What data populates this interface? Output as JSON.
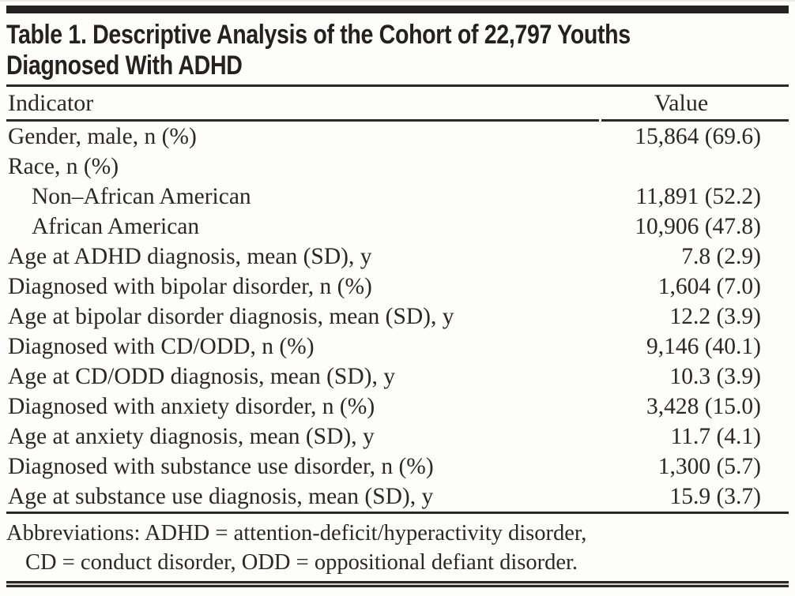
{
  "table": {
    "title_lines": [
      "Table 1. Descriptive Analysis of the Cohort of 22,797 Youths",
      "Diagnosed With ADHD"
    ],
    "columns": {
      "indicator": "Indicator",
      "value": "Value"
    },
    "rows": [
      {
        "label": "Gender, male, n (%)",
        "value": "15,864 (69.6)",
        "indent": false
      },
      {
        "label": "Race, n (%)",
        "value": "",
        "indent": false
      },
      {
        "label": "Non–African American",
        "value": "11,891 (52.2)",
        "indent": true
      },
      {
        "label": "African American",
        "value": "10,906 (47.8)",
        "indent": true
      },
      {
        "label": "Age at ADHD diagnosis, mean (SD), y",
        "value": "7.8 (2.9)",
        "indent": false
      },
      {
        "label": "Diagnosed with bipolar disorder, n (%)",
        "value": "1,604 (7.0)",
        "indent": false
      },
      {
        "label": "Age at bipolar disorder diagnosis, mean (SD), y",
        "value": "12.2 (3.9)",
        "indent": false
      },
      {
        "label": "Diagnosed with CD/ODD, n (%)",
        "value": "9,146 (40.1)",
        "indent": false
      },
      {
        "label": "Age at CD/ODD diagnosis, mean (SD), y",
        "value": "10.3 (3.9)",
        "indent": false
      },
      {
        "label": "Diagnosed with anxiety disorder, n (%)",
        "value": "3,428 (15.0)",
        "indent": false
      },
      {
        "label": "Age at anxiety diagnosis, mean (SD), y",
        "value": "11.7 (4.1)",
        "indent": false
      },
      {
        "label": "Diagnosed with substance use disorder, n (%)",
        "value": "1,300 (5.7)",
        "indent": false
      },
      {
        "label": "Age at substance use diagnosis, mean (SD), y",
        "value": "15.9 (3.7)",
        "indent": false
      }
    ],
    "footnote_lines": [
      "Abbreviations: ADHD = attention-deficit/hyperactivity disorder,",
      "CD = conduct disorder, ODD = oppositional defiant disorder."
    ],
    "colors": {
      "ink": "#2b2826",
      "title_ink": "#242122",
      "background": "#fdfdfb",
      "rule": "#2b2826"
    }
  }
}
